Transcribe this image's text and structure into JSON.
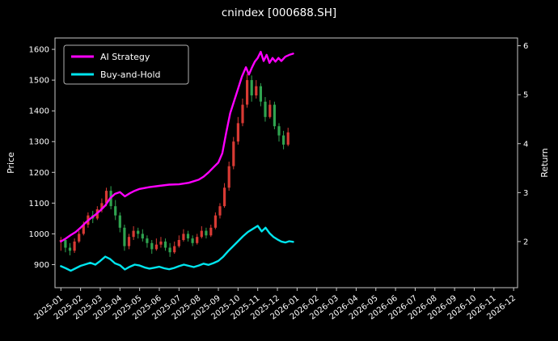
{
  "chart_data": {
    "type": "candlestick+line",
    "title": "cnindex [000688.SH]",
    "background_color": "#000000",
    "text_color": "#ffffff",
    "spine_color": "#c8c8c8",
    "legend_position": "upper-left",
    "grid": false,
    "x_axis": {
      "tick_labels": [
        "2025-01",
        "2025-02",
        "2025-03",
        "2025-04",
        "2025-05",
        "2025-06",
        "2025-07",
        "2025-08",
        "2025-09",
        "2025-10",
        "2025-11",
        "2025-12",
        "2026-01",
        "2026-02",
        "2026-03",
        "2026-04",
        "2026-05",
        "2026-06",
        "2026-07",
        "2026-08",
        "2026-09",
        "2026-10",
        "2026-11",
        "2026-12"
      ]
    },
    "y_left": {
      "label": "Price",
      "ticks": [
        900,
        1000,
        1100,
        1200,
        1300,
        1400,
        1500,
        1600
      ],
      "range": [
        825,
        1637
      ]
    },
    "y_right": {
      "label": "Return",
      "ticks": [
        2,
        3,
        4,
        5,
        6
      ],
      "range": [
        1.06,
        6.16
      ],
      "price_mapping": {
        "a": 656.6,
        "b": 159.2
      }
    },
    "candles": {
      "up_color": "#d83a34",
      "down_color": "#2fa34f",
      "ohlc": [
        [
          0,
          975,
          990,
          945,
          980
        ],
        [
          0.23,
          980,
          985,
          940,
          955
        ],
        [
          0.46,
          955,
          970,
          930,
          945
        ],
        [
          0.69,
          945,
          985,
          938,
          975
        ],
        [
          0.92,
          975,
          1010,
          970,
          1000
        ],
        [
          1.15,
          1000,
          1040,
          995,
          1030
        ],
        [
          1.38,
          1030,
          1070,
          1020,
          1060
        ],
        [
          1.62,
          1060,
          1075,
          1035,
          1050
        ],
        [
          1.85,
          1050,
          1090,
          1045,
          1080
        ],
        [
          2.08,
          1080,
          1115,
          1070,
          1100
        ],
        [
          2.31,
          1100,
          1150,
          1090,
          1140
        ],
        [
          2.54,
          1140,
          1155,
          1080,
          1090
        ],
        [
          2.77,
          1090,
          1110,
          1045,
          1060
        ],
        [
          3.0,
          1060,
          1070,
          1005,
          1020
        ],
        [
          3.23,
          1020,
          1030,
          945,
          960
        ],
        [
          3.46,
          960,
          1000,
          950,
          990
        ],
        [
          3.69,
          990,
          1025,
          980,
          1010
        ],
        [
          3.92,
          1010,
          1020,
          985,
          1000
        ],
        [
          4.15,
          1000,
          1015,
          975,
          985
        ],
        [
          4.38,
          985,
          995,
          955,
          970
        ],
        [
          4.62,
          970,
          980,
          935,
          950
        ],
        [
          4.85,
          950,
          985,
          945,
          965
        ],
        [
          5.08,
          965,
          990,
          955,
          975
        ],
        [
          5.31,
          975,
          985,
          945,
          955
        ],
        [
          5.54,
          955,
          970,
          925,
          940
        ],
        [
          5.77,
          940,
          975,
          935,
          960
        ],
        [
          6.0,
          960,
          995,
          955,
          980
        ],
        [
          6.23,
          980,
          1015,
          975,
          1000
        ],
        [
          6.46,
          1000,
          1010,
          975,
          985
        ],
        [
          6.69,
          985,
          995,
          960,
          970
        ],
        [
          6.92,
          970,
          1000,
          965,
          990
        ],
        [
          7.15,
          990,
          1025,
          985,
          1010
        ],
        [
          7.38,
          1010,
          1020,
          985,
          995
        ],
        [
          7.62,
          995,
          1030,
          990,
          1020
        ],
        [
          7.85,
          1020,
          1070,
          1015,
          1060
        ],
        [
          8.08,
          1060,
          1100,
          1050,
          1090
        ],
        [
          8.31,
          1090,
          1165,
          1085,
          1150
        ],
        [
          8.54,
          1150,
          1235,
          1140,
          1220
        ],
        [
          8.77,
          1220,
          1315,
          1210,
          1300
        ],
        [
          9.0,
          1300,
          1380,
          1290,
          1360
        ],
        [
          9.23,
          1360,
          1440,
          1350,
          1420
        ],
        [
          9.46,
          1420,
          1520,
          1410,
          1500
        ],
        [
          9.69,
          1500,
          1515,
          1430,
          1450
        ],
        [
          9.92,
          1450,
          1500,
          1440,
          1480
        ],
        [
          10.15,
          1480,
          1490,
          1415,
          1430
        ],
        [
          10.38,
          1430,
          1445,
          1365,
          1380
        ],
        [
          10.62,
          1380,
          1435,
          1375,
          1420
        ],
        [
          10.85,
          1420,
          1430,
          1340,
          1350
        ],
        [
          11.08,
          1350,
          1360,
          1300,
          1320
        ],
        [
          11.31,
          1320,
          1335,
          1275,
          1290
        ],
        [
          11.54,
          1290,
          1345,
          1285,
          1330
        ]
      ]
    },
    "series": [
      {
        "name": "AI Strategy",
        "color": "#ff00ff",
        "points": [
          [
            0,
            975
          ],
          [
            0.25,
            985
          ],
          [
            0.5,
            996
          ],
          [
            0.75,
            1006
          ],
          [
            1,
            1020
          ],
          [
            1.25,
            1036
          ],
          [
            1.5,
            1050
          ],
          [
            1.75,
            1062
          ],
          [
            2,
            1076
          ],
          [
            2.25,
            1092
          ],
          [
            2.5,
            1116
          ],
          [
            2.75,
            1130
          ],
          [
            3,
            1136
          ],
          [
            3.25,
            1122
          ],
          [
            3.5,
            1132
          ],
          [
            3.75,
            1140
          ],
          [
            4,
            1146
          ],
          [
            4.5,
            1152
          ],
          [
            5,
            1156
          ],
          [
            5.5,
            1160
          ],
          [
            6,
            1161
          ],
          [
            6.5,
            1166
          ],
          [
            7,
            1176
          ],
          [
            7.25,
            1186
          ],
          [
            7.5,
            1200
          ],
          [
            7.75,
            1216
          ],
          [
            8,
            1232
          ],
          [
            8.2,
            1262
          ],
          [
            8.4,
            1330
          ],
          [
            8.6,
            1392
          ],
          [
            8.8,
            1432
          ],
          [
            9,
            1472
          ],
          [
            9.2,
            1512
          ],
          [
            9.4,
            1542
          ],
          [
            9.55,
            1518
          ],
          [
            9.7,
            1540
          ],
          [
            9.85,
            1560
          ],
          [
            10,
            1572
          ],
          [
            10.15,
            1592
          ],
          [
            10.3,
            1562
          ],
          [
            10.45,
            1582
          ],
          [
            10.6,
            1556
          ],
          [
            10.75,
            1572
          ],
          [
            10.9,
            1560
          ],
          [
            11.05,
            1572
          ],
          [
            11.2,
            1562
          ],
          [
            11.4,
            1576
          ],
          [
            11.6,
            1582
          ],
          [
            11.8,
            1586
          ]
        ]
      },
      {
        "name": "Buy-and-Hold",
        "color": "#00e5ee",
        "points": [
          [
            0,
            895
          ],
          [
            0.25,
            888
          ],
          [
            0.5,
            880
          ],
          [
            0.75,
            888
          ],
          [
            1,
            896
          ],
          [
            1.25,
            901
          ],
          [
            1.5,
            906
          ],
          [
            1.75,
            900
          ],
          [
            2,
            912
          ],
          [
            2.25,
            926
          ],
          [
            2.5,
            918
          ],
          [
            2.75,
            904
          ],
          [
            3,
            898
          ],
          [
            3.25,
            884
          ],
          [
            3.5,
            893
          ],
          [
            3.75,
            900
          ],
          [
            4,
            897
          ],
          [
            4.25,
            891
          ],
          [
            4.5,
            887
          ],
          [
            4.75,
            890
          ],
          [
            5,
            893
          ],
          [
            5.25,
            888
          ],
          [
            5.5,
            885
          ],
          [
            5.75,
            889
          ],
          [
            6,
            895
          ],
          [
            6.25,
            900
          ],
          [
            6.5,
            896
          ],
          [
            6.75,
            892
          ],
          [
            7,
            897
          ],
          [
            7.25,
            903
          ],
          [
            7.5,
            899
          ],
          [
            7.75,
            905
          ],
          [
            8,
            912
          ],
          [
            8.25,
            926
          ],
          [
            8.5,
            944
          ],
          [
            8.75,
            960
          ],
          [
            9,
            976
          ],
          [
            9.25,
            992
          ],
          [
            9.5,
            1006
          ],
          [
            9.75,
            1016
          ],
          [
            10,
            1026
          ],
          [
            10.2,
            1008
          ],
          [
            10.4,
            1020
          ],
          [
            10.6,
            1002
          ],
          [
            10.8,
            990
          ],
          [
            11,
            982
          ],
          [
            11.2,
            975
          ],
          [
            11.4,
            972
          ],
          [
            11.6,
            976
          ],
          [
            11.8,
            974
          ]
        ]
      }
    ]
  }
}
